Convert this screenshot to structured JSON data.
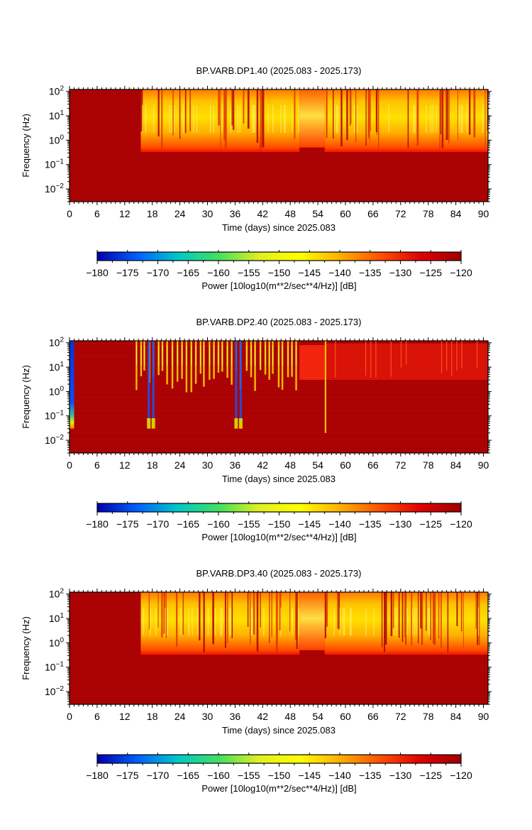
{
  "colorbar": {
    "ticks": [
      "−180",
      "−175",
      "−170",
      "−165",
      "−160",
      "−155",
      "−150",
      "−145",
      "−140",
      "−135",
      "−130",
      "−125",
      "−120"
    ],
    "label": "Power [10log10(m**2/sec**4/Hz)] [dB]",
    "colormap": [
      "#0000b0",
      "#0060ff",
      "#00c8c8",
      "#40e060",
      "#e0f020",
      "#ffff00",
      "#ffb000",
      "#ff5000",
      "#e00000",
      "#a00000"
    ],
    "range": [
      -180,
      -120
    ]
  },
  "chart_data": [
    {
      "type": "heatmap",
      "title": "BP.VARB.DP1.40 (2025.083 - 2025.173)",
      "xlabel": "Time (days) since 2025.083",
      "ylabel": "Frequency (Hz)",
      "x_ticks": [
        "0",
        "6",
        "12",
        "18",
        "24",
        "30",
        "36",
        "42",
        "48",
        "54",
        "60",
        "66",
        "72",
        "78",
        "84",
        "90"
      ],
      "x_range": [
        0,
        91
      ],
      "y_ticks": [
        {
          "base": "10",
          "exp": "2"
        },
        {
          "base": "10",
          "exp": "1"
        },
        {
          "base": "10",
          "exp": "0"
        },
        {
          "base": "10",
          "exp": "−1"
        },
        {
          "base": "10",
          "exp": "−2"
        }
      ],
      "y_range_hz": [
        0.003,
        120
      ],
      "y_scale": "log",
      "dominant_color": "#a80000",
      "segments": [
        {
          "from": 0,
          "to": 15.5,
          "state": "flat"
        },
        {
          "from": 15.5,
          "to": 50,
          "state": "active",
          "cutoff_hz": 0.35
        },
        {
          "from": 50,
          "to": 55.5,
          "state": "quiet",
          "cutoff_hz": 0.5
        },
        {
          "from": 55.5,
          "to": 91,
          "state": "active",
          "cutoff_hz": 0.35
        }
      ]
    },
    {
      "type": "heatmap",
      "title": "BP.VARB.DP2.40 (2025.083 - 2025.173)",
      "xlabel": "Time (days) since 2025.083",
      "ylabel": "Frequency (Hz)",
      "x_ticks": [
        "0",
        "6",
        "12",
        "18",
        "24",
        "30",
        "36",
        "42",
        "48",
        "54",
        "60",
        "66",
        "72",
        "78",
        "84",
        "90"
      ],
      "x_range": [
        0,
        91
      ],
      "y_ticks": [
        {
          "base": "10",
          "exp": "2"
        },
        {
          "base": "10",
          "exp": "1"
        },
        {
          "base": "10",
          "exp": "0"
        },
        {
          "base": "10",
          "exp": "−1"
        },
        {
          "base": "10",
          "exp": "−2"
        }
      ],
      "y_range_hz": [
        0.003,
        120
      ],
      "y_scale": "log",
      "dominant_color": "#a80000",
      "segments": [
        {
          "from": 0,
          "to": 1,
          "state": "low_power",
          "cutoff_hz": 0.03
        },
        {
          "from": 1,
          "to": 14,
          "state": "flat"
        },
        {
          "from": 14,
          "to": 50,
          "state": "stripes",
          "cutoff_hz": 0.5
        },
        {
          "from": 50,
          "to": 55.5,
          "state": "band",
          "cutoff_hz": 3
        },
        {
          "from": 55.5,
          "to": 91,
          "state": "band_stripes",
          "cutoff_hz": 3
        }
      ]
    },
    {
      "type": "heatmap",
      "title": "BP.VARB.DP3.40 (2025.083 - 2025.173)",
      "xlabel": "Time (days) since 2025.083",
      "ylabel": "Frequency (Hz)",
      "x_ticks": [
        "0",
        "6",
        "12",
        "18",
        "24",
        "30",
        "36",
        "42",
        "48",
        "54",
        "60",
        "66",
        "72",
        "78",
        "84",
        "90"
      ],
      "x_range": [
        0,
        91
      ],
      "y_ticks": [
        {
          "base": "10",
          "exp": "2"
        },
        {
          "base": "10",
          "exp": "1"
        },
        {
          "base": "10",
          "exp": "0"
        },
        {
          "base": "10",
          "exp": "−1"
        },
        {
          "base": "10",
          "exp": "−2"
        }
      ],
      "y_range_hz": [
        0.003,
        120
      ],
      "y_scale": "log",
      "dominant_color": "#a80000",
      "segments": [
        {
          "from": 0,
          "to": 15.5,
          "state": "flat"
        },
        {
          "from": 15.5,
          "to": 50,
          "state": "active",
          "cutoff_hz": 0.35
        },
        {
          "from": 50,
          "to": 55.5,
          "state": "quiet",
          "cutoff_hz": 0.5
        },
        {
          "from": 55.5,
          "to": 91,
          "state": "active",
          "cutoff_hz": 0.35
        }
      ]
    }
  ]
}
